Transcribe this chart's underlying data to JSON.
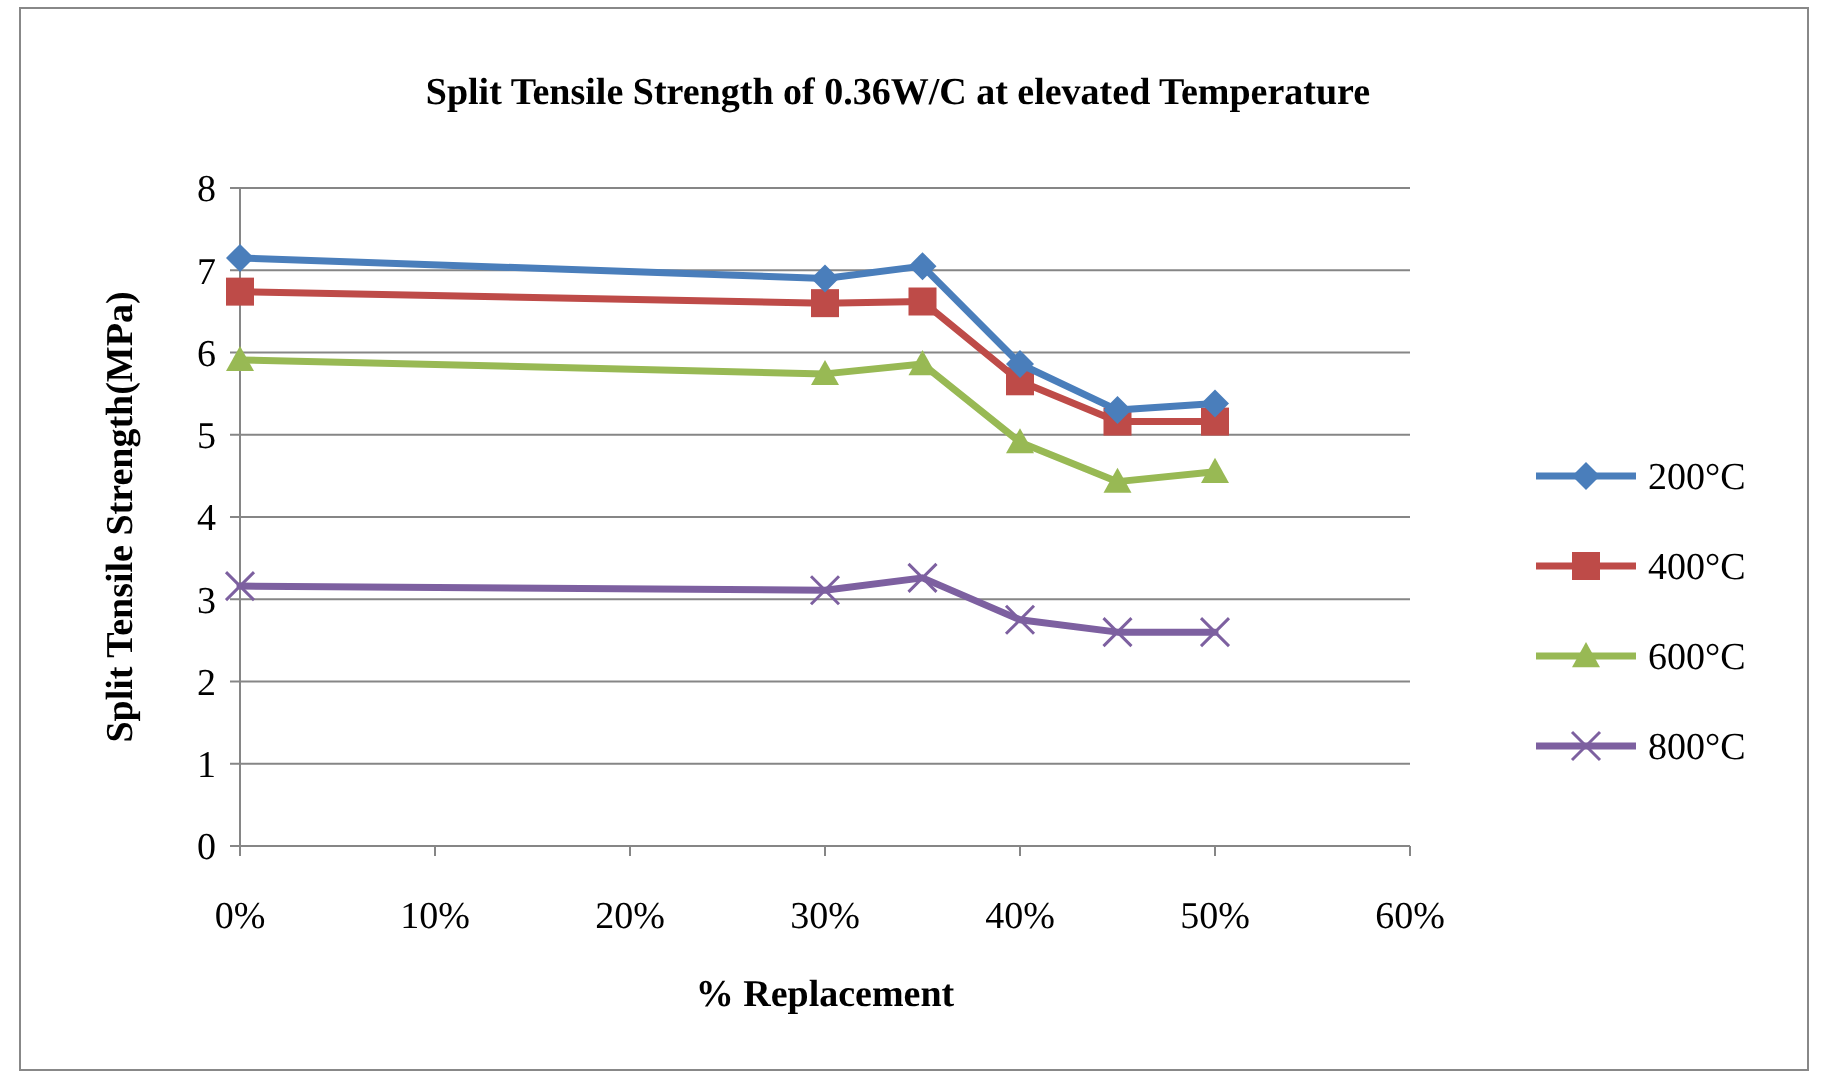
{
  "chart_data": {
    "type": "line",
    "title": "Split Tensile Strength of 0.36W/C at elevated Temperature",
    "xlabel": "% Replacement",
    "ylabel": "Split Tensile Strength(MPa)",
    "x": [
      0,
      30,
      35,
      40,
      45,
      50
    ],
    "series": [
      {
        "name": "200°C",
        "color": "#4a7ebb",
        "marker": "diamond",
        "values": [
          7.15,
          6.9,
          7.05,
          5.86,
          5.3,
          5.38
        ]
      },
      {
        "name": "400°C",
        "color": "#be4b48",
        "marker": "square",
        "values": [
          6.74,
          6.6,
          6.62,
          5.65,
          5.16,
          5.16
        ]
      },
      {
        "name": "600°C",
        "color": "#98b954",
        "marker": "triangle",
        "values": [
          5.91,
          5.74,
          5.86,
          4.91,
          4.43,
          4.55
        ]
      },
      {
        "name": "800°C",
        "color": "#7d60a0",
        "marker": "cross",
        "values": [
          3.16,
          3.11,
          3.26,
          2.75,
          2.6,
          2.6
        ]
      }
    ],
    "xlim": [
      0,
      60
    ],
    "xticks": [
      {
        "value": 0,
        "label": "0%"
      },
      {
        "value": 10,
        "label": "10%"
      },
      {
        "value": 20,
        "label": "20%"
      },
      {
        "value": 30,
        "label": "30%"
      },
      {
        "value": 40,
        "label": "40%"
      },
      {
        "value": 50,
        "label": "50%"
      },
      {
        "value": 60,
        "label": "60%"
      }
    ],
    "ylim": [
      0,
      8
    ],
    "yticks": [
      0,
      1,
      2,
      3,
      4,
      5,
      6,
      7,
      8
    ],
    "grid": "y",
    "legend": "right",
    "line_style": "solid"
  }
}
